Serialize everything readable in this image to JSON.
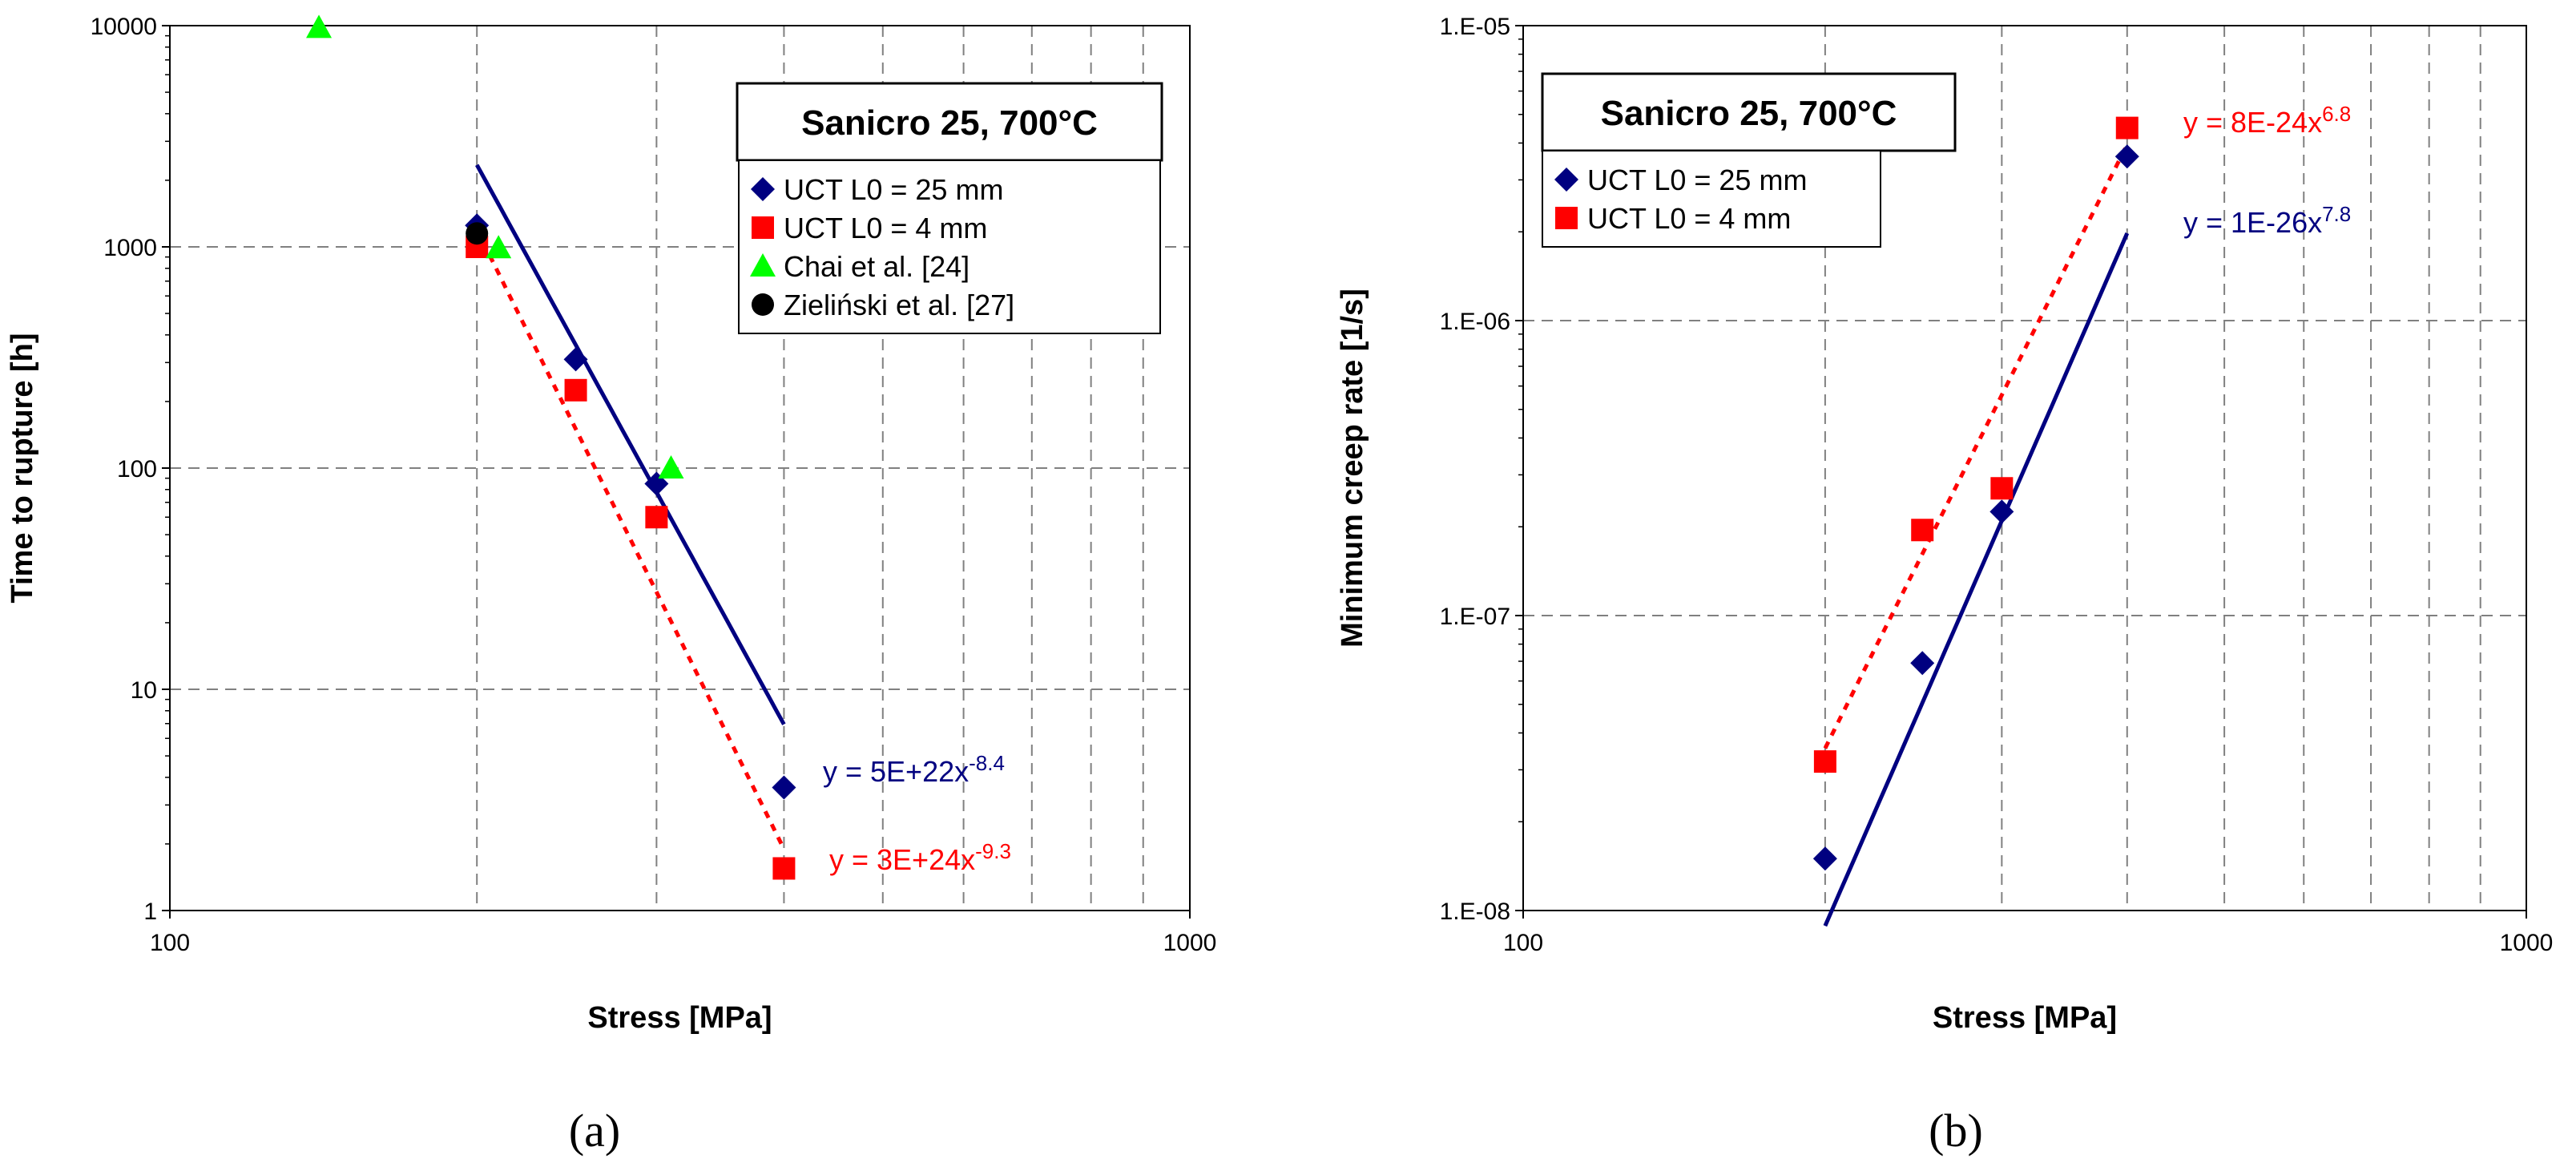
{
  "chart_data": [
    {
      "type": "scatter",
      "id": "a",
      "caption": "(a)",
      "title": "Sanicro 25, 700°C",
      "xlabel": "Stress [MPa]",
      "ylabel": "Time to rupture [h]",
      "x_scale": "log",
      "y_scale": "log",
      "xlim": [
        100,
        1000
      ],
      "ylim": [
        1,
        10000
      ],
      "x_ticks": [
        {
          "v": 100,
          "label": "100"
        },
        {
          "v": 1000,
          "label": "1000"
        }
      ],
      "y_ticks": [
        {
          "v": 1,
          "label": "1"
        },
        {
          "v": 10,
          "label": "10"
        },
        {
          "v": 100,
          "label": "100"
        },
        {
          "v": 1000,
          "label": "1000"
        },
        {
          "v": 10000,
          "label": "10000"
        }
      ],
      "grid": true,
      "legend_position": "top-right",
      "series": [
        {
          "name": "UCT L0 = 25 mm",
          "marker": "diamond",
          "color": "#000080",
          "x": [
            200,
            250,
            300,
            400
          ],
          "y": [
            1250,
            310,
            85,
            3.6
          ]
        },
        {
          "name": "UCT L0 = 4 mm",
          "marker": "square",
          "color": "#ff0000",
          "x": [
            200,
            250,
            300,
            400
          ],
          "y": [
            1000,
            225,
            60,
            1.55
          ]
        },
        {
          "name": "Chai et al. [24]",
          "marker": "triangle",
          "color": "#00ff00",
          "x": [
            140,
            210,
            310
          ],
          "y": [
            9800,
            990,
            100
          ]
        },
        {
          "name": "Zieliński et al. [27]",
          "marker": "circle",
          "color": "#000000",
          "x": [
            200
          ],
          "y": [
            1150
          ]
        }
      ],
      "fits": [
        {
          "series": "UCT L0 = 25 mm",
          "style": "solid",
          "color": "#000080",
          "coef": 5e+22,
          "exp": -8.4,
          "x_range": [
            200,
            400
          ],
          "eq_prefix": "y = 5E+22x",
          "eq_exp": "-8.4"
        },
        {
          "series": "UCT L0 = 4 mm",
          "style": "dotted",
          "color": "#ff0000",
          "coef": 3e+24,
          "exp": -9.3,
          "x_range": [
            200,
            400
          ],
          "eq_prefix": "y = 3E+24x",
          "eq_exp": "-9.3"
        }
      ]
    },
    {
      "type": "scatter",
      "id": "b",
      "caption": "(b)",
      "title": "Sanicro 25, 700°C",
      "xlabel": "Stress [MPa]",
      "ylabel": "Minimum creep rate [1/s]",
      "x_scale": "log",
      "y_scale": "log",
      "xlim": [
        100,
        1000
      ],
      "ylim": [
        1e-08,
        1e-05
      ],
      "x_ticks": [
        {
          "v": 100,
          "label": "100"
        },
        {
          "v": 1000,
          "label": "1000"
        }
      ],
      "y_ticks": [
        {
          "v": 1e-08,
          "label": "1.E-08"
        },
        {
          "v": 1e-07,
          "label": "1.E-07"
        },
        {
          "v": 1e-06,
          "label": "1.E-06"
        },
        {
          "v": 1e-05,
          "label": "1.E-05"
        }
      ],
      "grid": true,
      "legend_position": "top-left",
      "series": [
        {
          "name": "UCT L0 = 25 mm",
          "marker": "diamond",
          "color": "#000080",
          "x": [
            200,
            250,
            300,
            400
          ],
          "y": [
            1.5e-08,
            6.9e-08,
            2.25e-07,
            3.6e-06
          ]
        },
        {
          "name": "UCT L0 = 4 mm",
          "marker": "square",
          "color": "#ff0000",
          "x": [
            200,
            250,
            300,
            400
          ],
          "y": [
            3.2e-08,
            1.95e-07,
            2.7e-07,
            4.5e-06
          ]
        }
      ],
      "fits": [
        {
          "series": "UCT L0 = 4 mm",
          "style": "dotted",
          "color": "#ff0000",
          "coef": 8e-24,
          "exp": 6.8,
          "x_range": [
            200,
            400
          ],
          "eq_prefix": "y = 8E-24x",
          "eq_exp": "6.8"
        },
        {
          "series": "UCT L0 = 25 mm",
          "style": "solid",
          "color": "#000080",
          "coef": 1e-26,
          "exp": 7.8,
          "x_range": [
            200,
            400
          ],
          "eq_prefix": "y = 1E-26x",
          "eq_exp": "7.8"
        }
      ]
    }
  ]
}
